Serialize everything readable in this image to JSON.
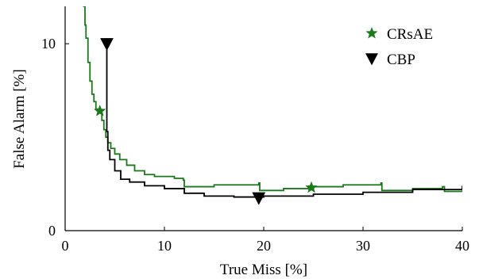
{
  "chart_data": {
    "type": "line",
    "title": "",
    "xlabel": "True Miss [%]",
    "ylabel": "False Alarm [%]",
    "xlim": [
      0,
      40
    ],
    "ylim": [
      0,
      12
    ],
    "xticks": [
      "0",
      "10",
      "20",
      "30",
      "40"
    ],
    "yticks": [
      "0",
      "10"
    ],
    "grid": false,
    "legend_position": "top-right",
    "series": [
      {
        "name": "CRsAE",
        "color": "#1a7a1a",
        "marker": "star",
        "marker_points": [
          [
            3.5,
            6.4
          ],
          [
            24.8,
            2.3
          ]
        ],
        "x": [
          1.8,
          2.0,
          2.1,
          2.3,
          2.5,
          2.7,
          2.9,
          3.1,
          3.3,
          3.5,
          3.7,
          3.9,
          4.1,
          4.3,
          4.6,
          5.0,
          5.5,
          6.2,
          7.0,
          8.0,
          9.0,
          11.0,
          11.9,
          12.0,
          15.0,
          19.5,
          19.6,
          22.0,
          25.0,
          28.0,
          31.8,
          31.9,
          35.0,
          38.0,
          38.2,
          40.0
        ],
        "y": [
          12.0,
          11.0,
          10.3,
          9.0,
          8.0,
          7.3,
          6.9,
          6.5,
          6.4,
          6.3,
          5.9,
          5.4,
          5.0,
          4.7,
          4.4,
          4.1,
          3.8,
          3.5,
          3.2,
          3.0,
          2.9,
          2.8,
          2.7,
          2.35,
          2.45,
          2.55,
          2.15,
          2.25,
          2.35,
          2.45,
          2.55,
          2.15,
          2.25,
          2.35,
          2.1,
          2.15
        ]
      },
      {
        "name": "CBP",
        "color": "#000000",
        "marker": "triangle-down",
        "marker_points": [
          [
            4.2,
            10.0
          ],
          [
            19.5,
            1.75
          ]
        ],
        "x": [
          4.2,
          4.2,
          4.3,
          4.5,
          5.0,
          5.6,
          6.5,
          8.0,
          10.0,
          12.0,
          14.0,
          17.0,
          20.0,
          25.0,
          30.0,
          35.0,
          40.0
        ],
        "y": [
          10.0,
          5.3,
          4.3,
          3.8,
          3.2,
          2.75,
          2.6,
          2.4,
          2.25,
          2.0,
          1.85,
          1.8,
          1.85,
          1.95,
          2.05,
          2.2,
          2.4
        ]
      }
    ]
  }
}
